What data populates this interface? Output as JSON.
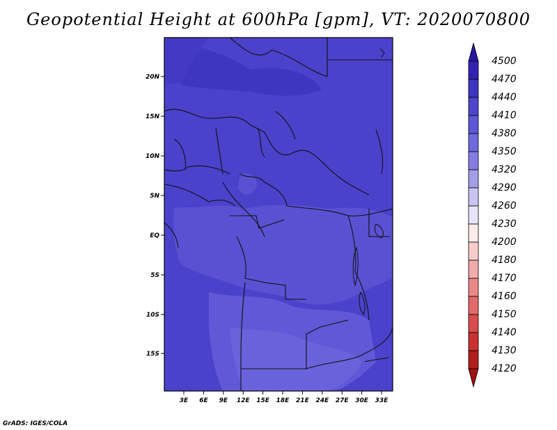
{
  "title": "Geopotential Height at 600hPa [gpm], VT: 2020070800",
  "footer": "GrADS: IGES/COLA",
  "lat_labels": [
    "20N",
    "15N",
    "10N",
    "5N",
    "EQ",
    "5S",
    "10S",
    "15S"
  ],
  "lon_labels": [
    "3E",
    "6E",
    "9E",
    "12E",
    "15E",
    "18E",
    "21E",
    "24E",
    "27E",
    "30E",
    "33E"
  ],
  "colorbar": {
    "levels": [
      "4500",
      "4470",
      "4440",
      "4410",
      "4380",
      "4350",
      "4320",
      "4290",
      "4260",
      "4230",
      "4200",
      "4180",
      "4170",
      "4160",
      "4150",
      "4140",
      "4130",
      "4120"
    ],
    "colors": [
      "#2818a0",
      "#3322b2",
      "#3f34c0",
      "#4e45cc",
      "#5e56d6",
      "#7068de",
      "#857de4",
      "#a49ee8",
      "#c8c4f2",
      "#e6e4fa",
      "#fdeaea",
      "#f8cccc",
      "#f2aaaa",
      "#ea8888",
      "#e26a6a",
      "#d84c4c",
      "#c83232",
      "#b01e1e",
      "#a01010"
    ]
  },
  "field": {
    "dominant": "#4a42cb",
    "darker": "#3f36c0",
    "lighter": "#6058d6"
  }
}
